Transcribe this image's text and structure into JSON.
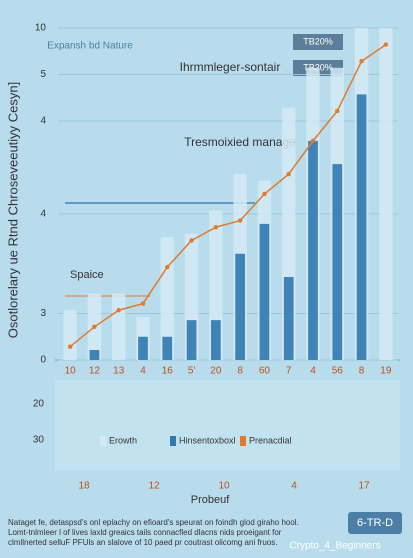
{
  "chart_data": {
    "type": "bar",
    "title": "Ihrmmleger-sontair",
    "y_label": "Osotlorelary ue Rtnd Chroseveeutiyy Cesyn]",
    "x_label": "Probeuf",
    "categories": [
      "10",
      "12",
      "13",
      "4",
      "16",
      "5'",
      "20",
      "8",
      "60",
      "7",
      "4",
      "56",
      "8",
      "19"
    ],
    "series": [
      {
        "name": "Erowth",
        "color": "#d3eaf5",
        "values": [
          1.5,
          2.0,
          2.0,
          1.3,
          3.7,
          3.8,
          4.5,
          5.6,
          5.4,
          7.6,
          8.8,
          8.8,
          10,
          10
        ]
      },
      {
        "name": "Hinsentoxboxl",
        "color": "#2f78b0",
        "values": [
          0,
          0.3,
          0,
          0.7,
          0.7,
          1.2,
          1.2,
          3.2,
          4.1,
          2.5,
          6.6,
          5.9,
          8.0,
          0
        ]
      },
      {
        "name": "Prenacdial",
        "color": "#e07a2c",
        "values": [
          0.4,
          1.0,
          1.5,
          1.7,
          2.8,
          3.6,
          4.0,
          4.2,
          5.0,
          5.6,
          6.6,
          7.5,
          9.0,
          9.5
        ]
      }
    ],
    "ylim": [
      0,
      10
    ],
    "yticks": [
      0,
      {
        "value": 1.4,
        "label": "3"
      },
      {
        "value": 4.4,
        "label": "4"
      },
      {
        "value": 7.2,
        "label": "4"
      },
      {
        "value": 8.6,
        "label": "5"
      },
      10
    ],
    "grid": true,
    "lower_labels": [
      "20",
      "30"
    ],
    "bottom_labels": [
      "18",
      "12",
      "10",
      "4",
      "17"
    ],
    "annotations": [
      "Expansh bd Nature",
      "Tresmoixied manage",
      "Spaice",
      "TB20%",
      "TB20%"
    ],
    "footnote": [
      "Nataget fe, detaspsd's onl eplachy on efioard's speurat on foindh glod giraho hool.",
      "Lomt-tnlmleer l of lives laxld greaics tails connacfled dlacns nids proeigant for",
      "clmllnerted selluF PFUls an slalove of 10 paed pr coutrast olicomg ani fruos."
    ],
    "badge": "6-TR-D",
    "watermark": "Crypto_4_Beginners"
  }
}
